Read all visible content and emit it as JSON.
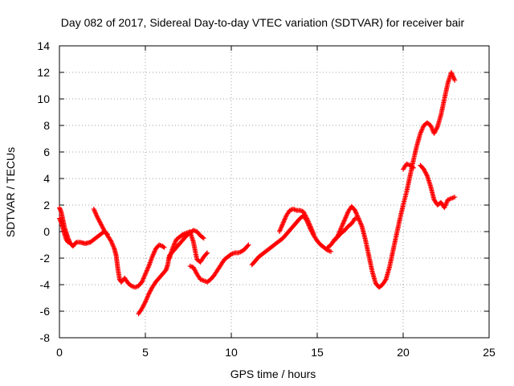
{
  "chart_data": {
    "type": "scatter",
    "title": "Day 082 of 2017, Sidereal Day-to-day VTEC variation (SDTVAR) for receiver bair",
    "xlabel": "GPS time / hours",
    "ylabel": "SDTVAR / TECUs",
    "xlim": [
      0,
      25
    ],
    "ylim": [
      -8,
      14
    ],
    "xticks": [
      "0",
      "5",
      "10",
      "15",
      "20",
      "25"
    ],
    "yticks": [
      "-8",
      "-6",
      "-4",
      "-2",
      "0",
      "2",
      "4",
      "6",
      "8",
      "10",
      "12",
      "14"
    ],
    "grid": true,
    "marker": "plus",
    "color": "#ff0000",
    "segments": [
      [
        [
          0.0,
          1.8
        ],
        [
          0.1,
          1.5
        ],
        [
          0.2,
          0.9
        ],
        [
          0.3,
          0.3
        ],
        [
          0.4,
          -0.1
        ],
        [
          0.5,
          -0.5
        ],
        [
          0.6,
          -0.8
        ],
        [
          0.7,
          -1.0
        ],
        [
          0.8,
          -1.1
        ],
        [
          0.9,
          -0.9
        ],
        [
          1.0,
          -0.8
        ],
        [
          1.2,
          -0.8
        ],
        [
          1.5,
          -0.9
        ],
        [
          1.8,
          -0.8
        ],
        [
          2.1,
          -0.5
        ],
        [
          2.4,
          -0.2
        ],
        [
          2.6,
          0.0
        ],
        [
          2.8,
          -0.2
        ]
      ],
      [
        [
          0.0,
          1.0
        ],
        [
          0.1,
          0.7
        ],
        [
          0.2,
          0.3
        ],
        [
          0.3,
          -0.2
        ],
        [
          0.4,
          -0.6
        ],
        [
          0.5,
          -0.8
        ]
      ],
      [
        [
          2.0,
          1.7
        ],
        [
          2.2,
          1.1
        ],
        [
          2.4,
          0.6
        ],
        [
          2.6,
          0.1
        ],
        [
          2.8,
          -0.3
        ],
        [
          3.0,
          -0.7
        ],
        [
          3.2,
          -1.3
        ],
        [
          3.3,
          -1.8
        ],
        [
          3.4,
          -2.8
        ],
        [
          3.5,
          -3.6
        ],
        [
          3.6,
          -3.8
        ],
        [
          3.8,
          -3.5
        ],
        [
          4.0,
          -3.9
        ],
        [
          4.2,
          -4.1
        ],
        [
          4.4,
          -4.2
        ],
        [
          4.6,
          -4.1
        ],
        [
          4.8,
          -3.8
        ],
        [
          5.0,
          -3.2
        ],
        [
          5.2,
          -2.6
        ],
        [
          5.4,
          -1.9
        ],
        [
          5.6,
          -1.3
        ],
        [
          5.8,
          -1.0
        ],
        [
          6.0,
          -1.1
        ],
        [
          6.1,
          -1.2
        ]
      ],
      [
        [
          4.6,
          -6.2
        ],
        [
          4.8,
          -5.8
        ],
        [
          5.0,
          -5.3
        ],
        [
          5.2,
          -4.7
        ],
        [
          5.4,
          -4.2
        ],
        [
          5.6,
          -3.8
        ],
        [
          5.8,
          -3.5
        ],
        [
          6.0,
          -3.2
        ],
        [
          6.2,
          -2.9
        ],
        [
          6.3,
          -2.5
        ],
        [
          6.4,
          -1.8
        ],
        [
          6.6,
          -1.5
        ],
        [
          6.8,
          -1.2
        ],
        [
          7.0,
          -0.9
        ],
        [
          7.2,
          -0.6
        ],
        [
          7.4,
          -0.3
        ],
        [
          7.6,
          -0.1
        ],
        [
          7.8,
          0.1
        ],
        [
          8.0,
          0.0
        ],
        [
          8.2,
          -0.3
        ],
        [
          8.4,
          -0.5
        ]
      ],
      [
        [
          6.4,
          -2.0
        ],
        [
          6.6,
          -1.2
        ],
        [
          6.8,
          -0.6
        ],
        [
          7.0,
          -0.4
        ],
        [
          7.2,
          -0.2
        ],
        [
          7.4,
          -0.1
        ],
        [
          7.6,
          0.0
        ],
        [
          7.8,
          -0.8
        ],
        [
          8.0,
          -2.1
        ],
        [
          8.2,
          -2.3
        ],
        [
          8.4,
          -1.9
        ],
        [
          8.6,
          -1.6
        ]
      ],
      [
        [
          7.6,
          -2.6
        ],
        [
          7.8,
          -2.7
        ],
        [
          8.0,
          -3.2
        ],
        [
          8.2,
          -3.6
        ],
        [
          8.4,
          -3.7
        ],
        [
          8.6,
          -3.8
        ],
        [
          8.8,
          -3.6
        ],
        [
          9.0,
          -3.3
        ],
        [
          9.2,
          -2.9
        ],
        [
          9.4,
          -2.5
        ],
        [
          9.6,
          -2.1
        ],
        [
          9.8,
          -1.9
        ],
        [
          10.0,
          -1.7
        ],
        [
          10.2,
          -1.6
        ],
        [
          10.4,
          -1.6
        ],
        [
          10.6,
          -1.5
        ],
        [
          10.8,
          -1.3
        ],
        [
          11.0,
          -1.0
        ]
      ],
      [
        [
          11.2,
          -2.5
        ],
        [
          11.4,
          -2.2
        ],
        [
          11.6,
          -1.9
        ],
        [
          11.8,
          -1.7
        ],
        [
          12.0,
          -1.5
        ],
        [
          12.2,
          -1.3
        ],
        [
          12.4,
          -1.1
        ],
        [
          12.6,
          -0.9
        ],
        [
          12.8,
          -0.7
        ],
        [
          13.0,
          -0.5
        ],
        [
          13.2,
          -0.2
        ],
        [
          13.4,
          0.1
        ],
        [
          13.6,
          0.4
        ],
        [
          13.8,
          0.7
        ],
        [
          14.0,
          1.0
        ],
        [
          14.2,
          1.2
        ],
        [
          14.4,
          0.8
        ],
        [
          14.6,
          0.2
        ],
        [
          14.8,
          -0.3
        ],
        [
          15.0,
          -0.7
        ],
        [
          15.2,
          -1.0
        ],
        [
          15.4,
          -1.2
        ],
        [
          15.6,
          -1.4
        ],
        [
          15.8,
          -1.5
        ]
      ],
      [
        [
          12.8,
          0.0
        ],
        [
          13.0,
          0.6
        ],
        [
          13.2,
          1.2
        ],
        [
          13.4,
          1.6
        ],
        [
          13.6,
          1.7
        ],
        [
          13.8,
          1.6
        ],
        [
          14.0,
          1.6
        ],
        [
          14.2,
          1.5
        ],
        [
          14.4,
          1.0
        ],
        [
          14.6,
          0.4
        ],
        [
          14.8,
          -0.2
        ]
      ],
      [
        [
          15.6,
          -1.2
        ],
        [
          15.8,
          -1.0
        ],
        [
          16.0,
          -0.6
        ],
        [
          16.2,
          -0.4
        ],
        [
          16.4,
          -0.1
        ],
        [
          16.6,
          0.1
        ],
        [
          16.8,
          0.4
        ],
        [
          17.0,
          0.6
        ],
        [
          17.2,
          1.0
        ],
        [
          17.4,
          1.0
        ],
        [
          17.6,
          0.4
        ],
        [
          17.8,
          -0.6
        ],
        [
          18.0,
          -1.8
        ],
        [
          18.2,
          -3.0
        ],
        [
          18.4,
          -3.9
        ],
        [
          18.6,
          -4.2
        ],
        [
          18.8,
          -4.0
        ],
        [
          19.0,
          -3.6
        ],
        [
          19.2,
          -2.7
        ],
        [
          19.4,
          -1.5
        ],
        [
          19.6,
          -0.3
        ],
        [
          19.8,
          0.9
        ],
        [
          20.0,
          2.0
        ],
        [
          20.2,
          3.0
        ],
        [
          20.4,
          4.2
        ],
        [
          20.6,
          5.4
        ],
        [
          20.8,
          6.5
        ],
        [
          21.0,
          7.4
        ],
        [
          21.2,
          8.0
        ],
        [
          21.4,
          8.2
        ],
        [
          21.6,
          8.0
        ],
        [
          21.8,
          7.4
        ],
        [
          22.0,
          7.9
        ],
        [
          22.2,
          8.8
        ],
        [
          22.4,
          10.0
        ],
        [
          22.6,
          11.2
        ],
        [
          22.8,
          12.0
        ],
        [
          23.0,
          11.4
        ]
      ],
      [
        [
          16.0,
          -0.7
        ],
        [
          16.2,
          -0.3
        ],
        [
          16.4,
          0.3
        ],
        [
          16.6,
          0.9
        ],
        [
          16.8,
          1.5
        ],
        [
          17.0,
          1.9
        ],
        [
          17.2,
          1.6
        ],
        [
          17.4,
          1.0
        ]
      ],
      [
        [
          20.0,
          4.7
        ],
        [
          20.2,
          5.1
        ],
        [
          20.4,
          5.0
        ],
        [
          20.6,
          4.8
        ]
      ],
      [
        [
          21.0,
          5.0
        ],
        [
          21.2,
          4.7
        ],
        [
          21.4,
          4.2
        ],
        [
          21.6,
          3.4
        ],
        [
          21.8,
          2.4
        ],
        [
          22.0,
          2.0
        ],
        [
          22.2,
          2.2
        ],
        [
          22.4,
          1.8
        ],
        [
          22.6,
          2.4
        ],
        [
          22.8,
          2.5
        ],
        [
          23.0,
          2.6
        ]
      ]
    ]
  }
}
